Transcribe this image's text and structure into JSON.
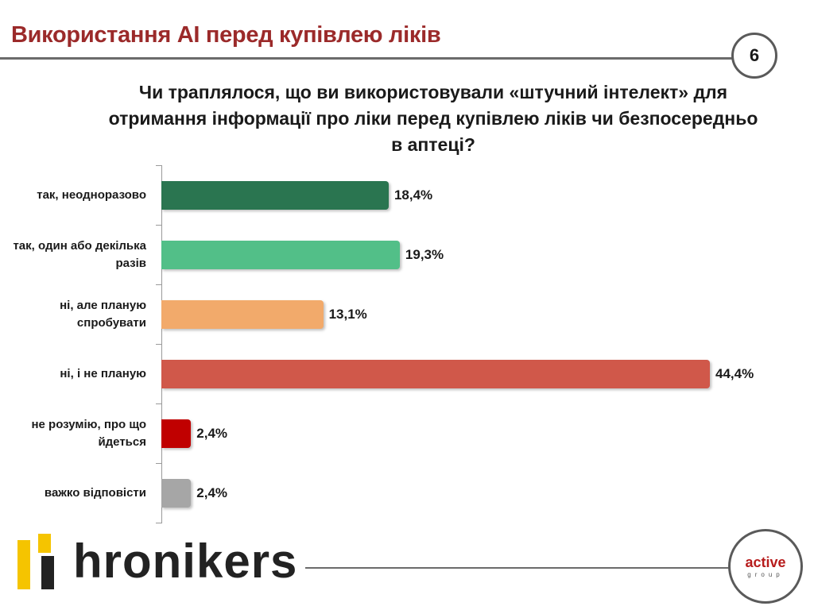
{
  "slide": {
    "title": "Використання AI перед купівлею ліків",
    "page_number": "6",
    "question": "Чи траплялося, що ви використовували «штучний інтелект» для отримання інформації про ліки перед купівлею ліків чи безпосередньо в аптеці?"
  },
  "chart_data": {
    "type": "bar",
    "orientation": "horizontal",
    "categories": [
      "так, неодноразово",
      "так, один або декілька разів",
      "ні, але планую спробувати",
      "ні, і не планую",
      "не розумію, про що йдеться",
      "важко відповісти"
    ],
    "values": [
      18.4,
      19.3,
      13.1,
      44.4,
      2.4,
      2.4
    ],
    "value_labels": [
      "18,4%",
      "19,3%",
      "13,1%",
      "44,4%",
      "2,4%",
      "2,4%"
    ],
    "colors": [
      "#2a7550",
      "#52bf88",
      "#f2aa6b",
      "#d0584a",
      "#c00000",
      "#a6a6a6"
    ],
    "xlim": [
      0,
      44.4
    ],
    "grid": false,
    "legend": "none"
  },
  "footer": {
    "brand": "hronikers",
    "partner_word": "active",
    "partner_sub": "group"
  }
}
